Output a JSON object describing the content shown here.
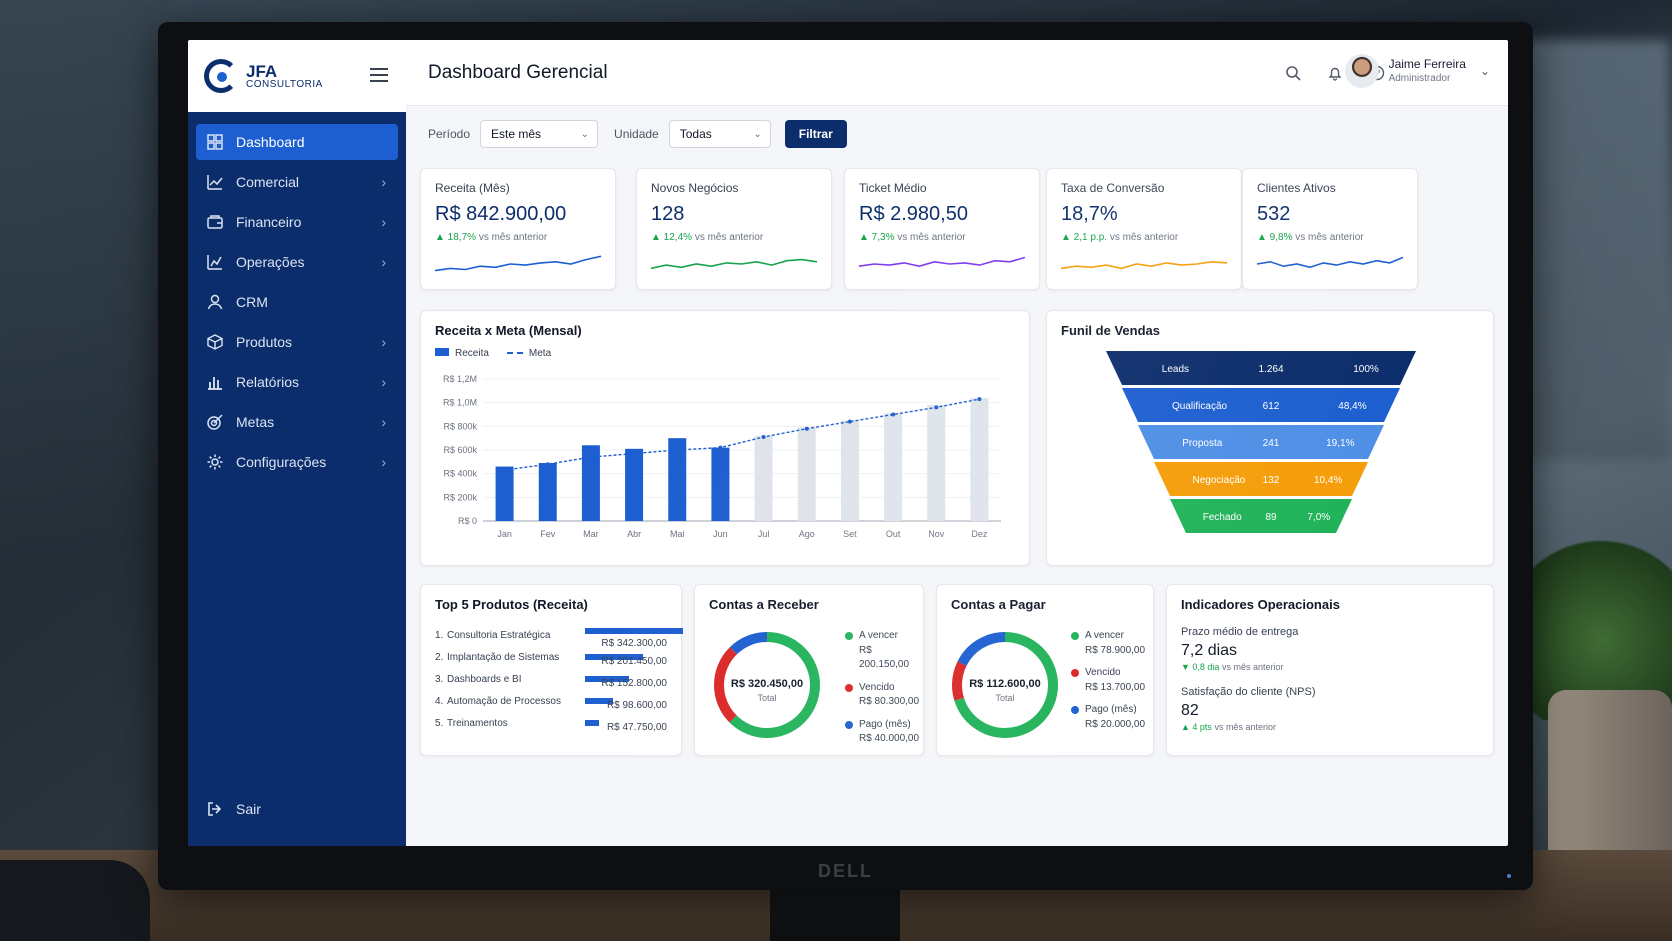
{
  "app": {
    "brand_line1": "JFA",
    "brand_line2": "CONSULTORIA",
    "page_title": "Dashboard Gerencial",
    "monitor_brand": "DELL"
  },
  "sidebar": {
    "items": [
      {
        "label": "Dashboard",
        "icon": "dashboard-icon",
        "active": true,
        "has_submenu": false
      },
      {
        "label": "Comercial",
        "icon": "chart-line-icon",
        "has_submenu": true
      },
      {
        "label": "Financeiro",
        "icon": "wallet-icon",
        "has_submenu": true
      },
      {
        "label": "Operações",
        "icon": "operations-icon",
        "has_submenu": true
      },
      {
        "label": "CRM",
        "icon": "user-icon",
        "has_submenu": false
      },
      {
        "label": "Produtos",
        "icon": "box-icon",
        "has_submenu": true
      },
      {
        "label": "Relatórios",
        "icon": "bar-chart-icon",
        "has_submenu": true
      },
      {
        "label": "Metas",
        "icon": "target-icon",
        "has_submenu": true
      },
      {
        "label": "Configurações",
        "icon": "gear-icon",
        "has_submenu": true
      }
    ],
    "logout": "Sair"
  },
  "user": {
    "name": "Jaime Ferreira",
    "role": "Administrador"
  },
  "filters": {
    "period_label": "Período",
    "period_value": "Este mês",
    "unit_label": "Unidade",
    "unit_value": "Todas",
    "button": "Filtrar"
  },
  "kpis": [
    {
      "title": "Receita (Mês)",
      "value": "R$ 842.900,00",
      "change": "▲ 18,7%",
      "vs": "vs mês anterior",
      "color": "#1d5fd0",
      "trend": [
        0.2,
        0.3,
        0.25,
        0.4,
        0.35,
        0.5,
        0.45,
        0.55,
        0.6,
        0.5,
        0.7,
        0.85
      ]
    },
    {
      "title": "Novos Negócios",
      "value": "128",
      "change": "▲ 12,4%",
      "vs": "vs mês anterior",
      "color": "#16a34a",
      "trend": [
        0.3,
        0.45,
        0.35,
        0.5,
        0.4,
        0.55,
        0.5,
        0.6,
        0.45,
        0.65,
        0.7,
        0.6
      ]
    },
    {
      "title": "Ticket Médio",
      "value": "R$ 2.980,50",
      "change": "▲ 7,3%",
      "vs": "vs mês anterior",
      "color": "#7c3aed",
      "trend": [
        0.4,
        0.5,
        0.45,
        0.55,
        0.4,
        0.6,
        0.5,
        0.55,
        0.45,
        0.65,
        0.6,
        0.8
      ]
    },
    {
      "title": "Taxa de Conversão",
      "value": "18,7%",
      "change": "▲ 2,1 p.p.",
      "vs": "vs mês anterior",
      "color": "#f59e0b",
      "trend": [
        0.3,
        0.4,
        0.35,
        0.45,
        0.3,
        0.5,
        0.4,
        0.55,
        0.45,
        0.5,
        0.6,
        0.55
      ]
    },
    {
      "title": "Clientes Ativos",
      "value": "532",
      "change": "▲ 9,8%",
      "vs": "vs mês anterior",
      "color": "#1d5fd0",
      "trend": [
        0.5,
        0.6,
        0.4,
        0.5,
        0.35,
        0.55,
        0.45,
        0.6,
        0.5,
        0.65,
        0.55,
        0.8
      ]
    }
  ],
  "revenue_chart": {
    "title": "Receita x Meta (Mensal)",
    "legend_bar": "Receita",
    "legend_line": "Meta"
  },
  "chart_data": {
    "type": "bar",
    "title": "Receita x Meta (Mensal)",
    "categories": [
      "Jan",
      "Fev",
      "Mar",
      "Abr",
      "Mai",
      "Jun",
      "Jul",
      "Ago",
      "Set",
      "Out",
      "Nov",
      "Dez"
    ],
    "series": [
      {
        "name": "Receita",
        "values": [
          460000,
          490000,
          640000,
          610000,
          700000,
          620000,
          720000,
          790000,
          850000,
          910000,
          980000,
          1040000
        ],
        "realized_months": 6
      },
      {
        "name": "Meta",
        "values": [
          430000,
          480000,
          540000,
          570000,
          600000,
          620000,
          710000,
          780000,
          840000,
          900000,
          960000,
          1030000
        ]
      }
    ],
    "y_ticks": [
      "R$ 0",
      "R$ 200k",
      "R$ 400k",
      "R$ 600k",
      "R$ 800k",
      "R$ 1,0M",
      "R$ 1,2M"
    ],
    "ylim": [
      0,
      1200000
    ]
  },
  "funnel": {
    "title": "Funil de Vendas",
    "stages": [
      {
        "label": "Leads",
        "count": "1.264",
        "pct": "100%",
        "color": "#0c2d6b"
      },
      {
        "label": "Qualificação",
        "count": "612",
        "pct": "48,4%",
        "color": "#1d5fd0"
      },
      {
        "label": "Proposta",
        "count": "241",
        "pct": "19,1%",
        "color": "#4f8fe6"
      },
      {
        "label": "Negociação",
        "count": "132",
        "pct": "10,4%",
        "color": "#f59e0b"
      },
      {
        "label": "Fechado",
        "count": "89",
        "pct": "7,0%",
        "color": "#22b35a"
      }
    ]
  },
  "top_products": {
    "title": "Top 5 Produtos (Receita)",
    "items": [
      {
        "rank": "1.",
        "name": "Consultoria Estratégica",
        "value": "R$ 342.300,00",
        "share": 1.0
      },
      {
        "rank": "2.",
        "name": "Implantação de Sistemas",
        "value": "R$ 201.450,00",
        "share": 0.59
      },
      {
        "rank": "3.",
        "name": "Dashboards e BI",
        "value": "R$ 152.800,00",
        "share": 0.45
      },
      {
        "rank": "4.",
        "name": "Automação de Processos",
        "value": "R$ 98.600,00",
        "share": 0.29
      },
      {
        "rank": "5.",
        "name": "Treinamentos",
        "value": "R$ 47.750,00",
        "share": 0.14
      }
    ]
  },
  "receivables": {
    "title": "Contas a Receber",
    "total": "R$ 320.450,00",
    "total_label": "Total",
    "items": [
      {
        "label": "A vencer",
        "value": "R$ 200.150,00",
        "color": "#22b35a",
        "amount": 200150
      },
      {
        "label": "Vencido",
        "value": "R$ 80.300,00",
        "color": "#dc2626",
        "amount": 80300
      },
      {
        "label": "Pago (mês)",
        "value": "R$ 40.000,00",
        "color": "#1d5fd0",
        "amount": 40000
      }
    ]
  },
  "payables": {
    "title": "Contas a Pagar",
    "total": "R$ 112.600,00",
    "total_label": "Total",
    "items": [
      {
        "label": "A vencer",
        "value": "R$ 78.900,00",
        "color": "#22b35a",
        "amount": 78900
      },
      {
        "label": "Vencido",
        "value": "R$ 13.700,00",
        "color": "#dc2626",
        "amount": 13700
      },
      {
        "label": "Pago (mês)",
        "value": "R$ 20.000,00",
        "color": "#1d5fd0",
        "amount": 20000
      }
    ]
  },
  "indicators": {
    "title": "Indicadores Operacionais",
    "items": [
      {
        "label": "Prazo médio de entrega",
        "value": "7,2 dias",
        "change": "▼ 0,8 dia",
        "vs": "vs mês anterior"
      },
      {
        "label": "Satisfação do cliente (NPS)",
        "value": "82",
        "change": "▲ 4 pts",
        "vs": "vs mês anterior"
      }
    ]
  }
}
